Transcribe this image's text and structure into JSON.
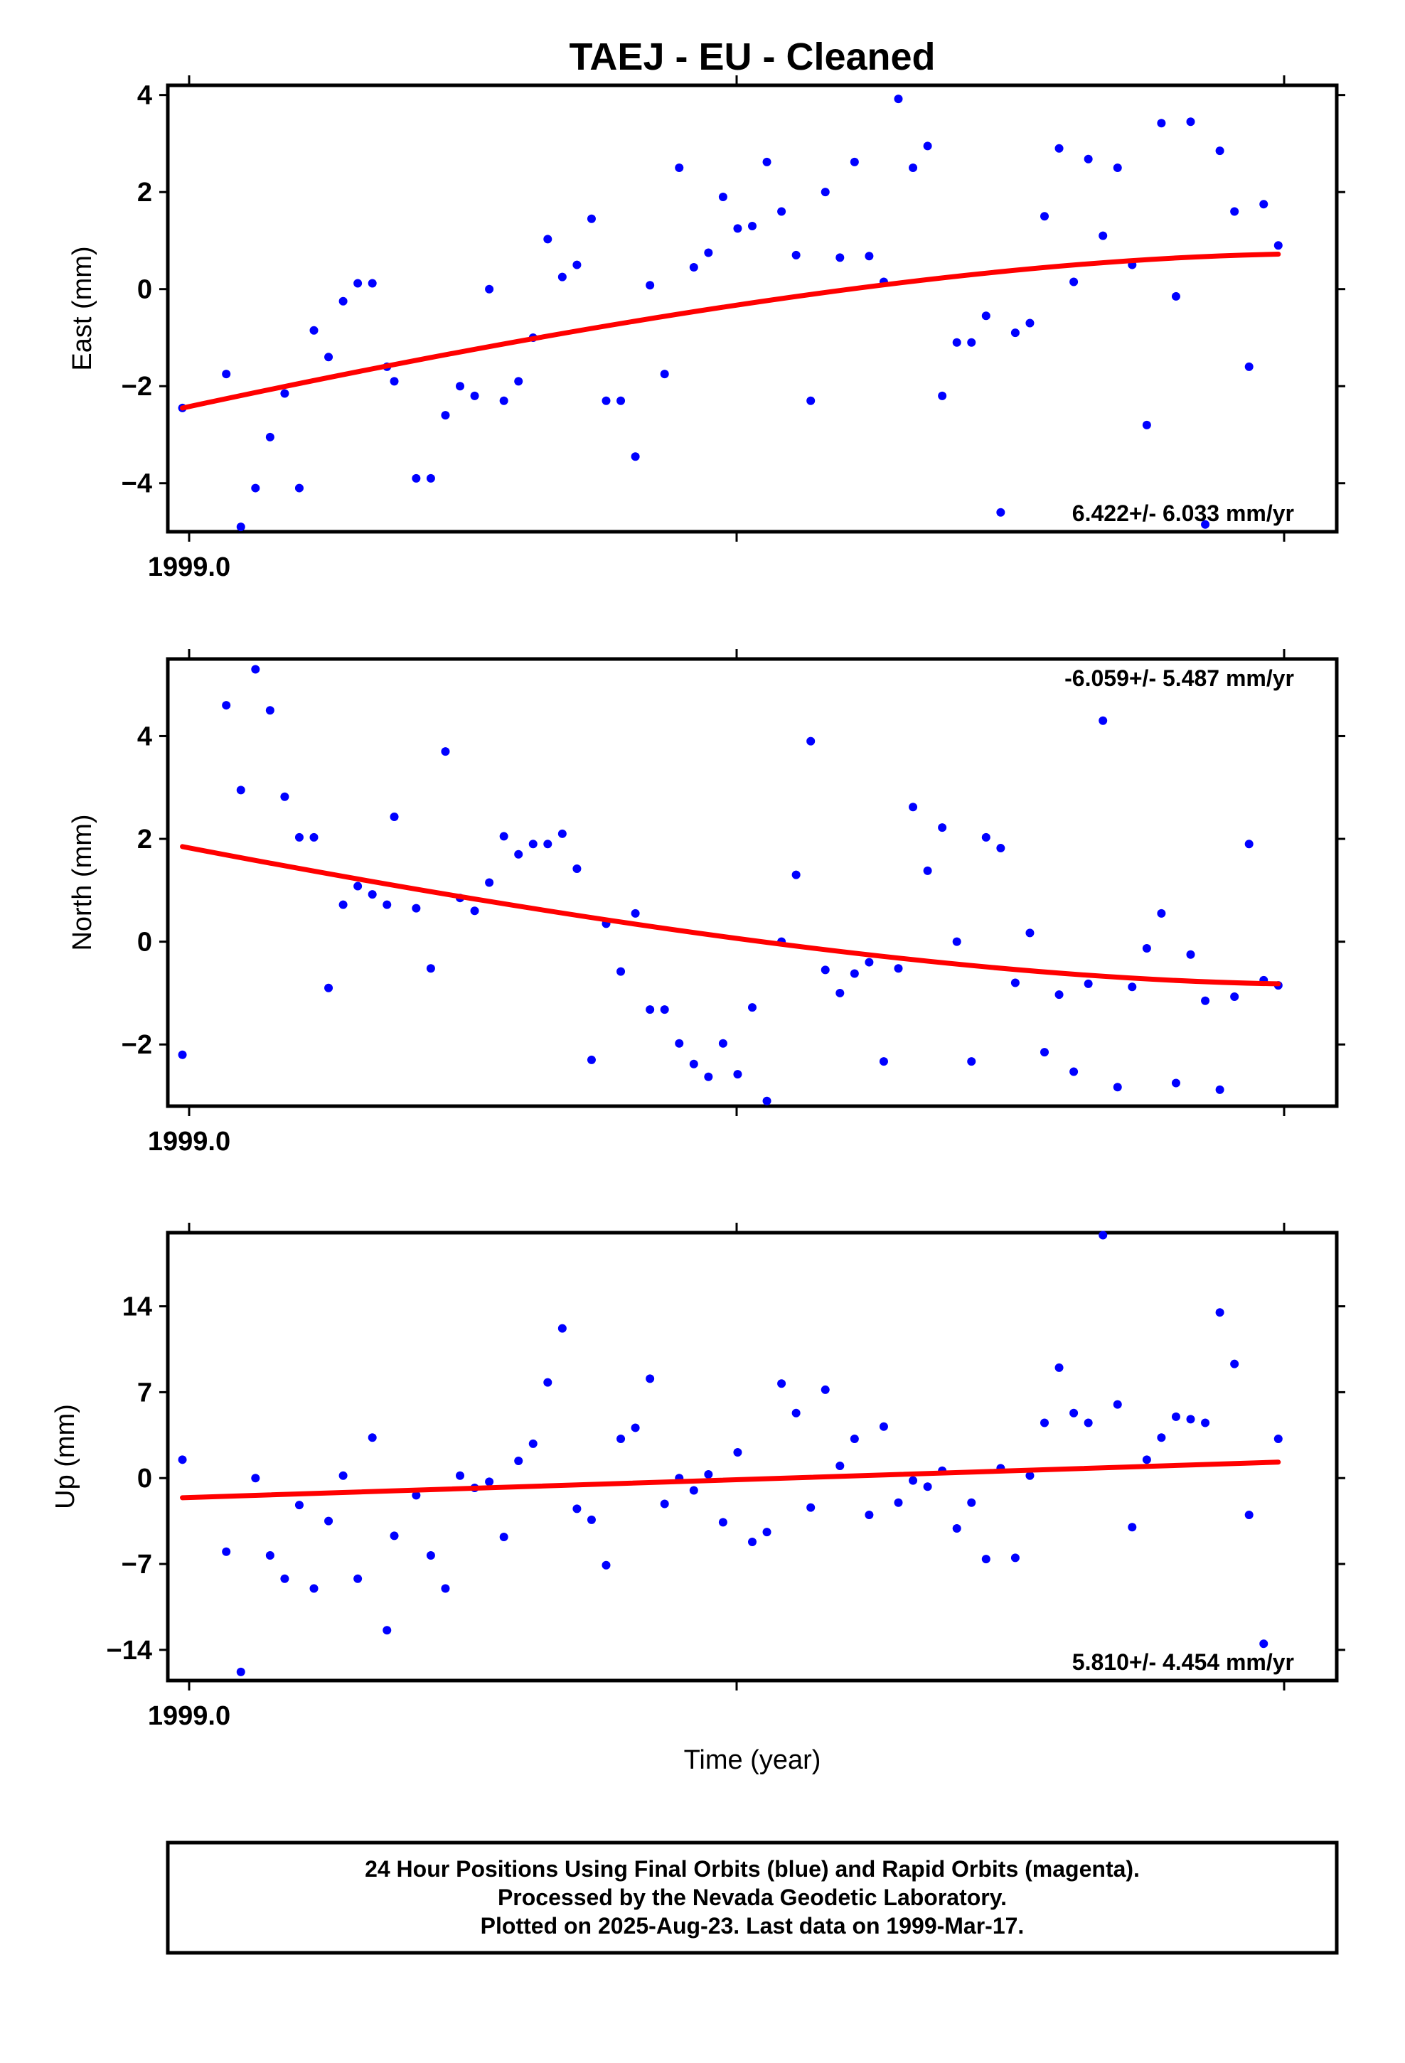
{
  "chart_data": [
    {
      "type": "scatter",
      "title": "TAEJ  - EU - Cleaned",
      "ylabel": "East (mm)",
      "xlabel": "",
      "x_tick_label": "1999.0",
      "yticks": [
        -4,
        -2,
        0,
        2,
        4
      ],
      "ylim": [
        -5.0,
        4.2
      ],
      "rate_label": "6.422+/- 6.033 mm/yr",
      "x": [
        1.0,
        4.0,
        5.0,
        6.0,
        7.0,
        8.0,
        9.0,
        10.0,
        11.0,
        12.0,
        13.0,
        14.0,
        15.0,
        15.5,
        17.0,
        18.0,
        19.0,
        20.0,
        21.0,
        22.0,
        23.0,
        24.0,
        25.0,
        26.0,
        27.0,
        28.0,
        29.0,
        30.0,
        31.0,
        32.0,
        33.0,
        34.0,
        35.0,
        36.0,
        37.0,
        38.0,
        39.0,
        40.0,
        41.0,
        42.0,
        43.0,
        44.0,
        45.0,
        46.0,
        47.0,
        48.0,
        49.0,
        50.0,
        51.0,
        52.0,
        53.0,
        54.0,
        55.0,
        56.0,
        57.0,
        58.0,
        59.0,
        60.0,
        61.0,
        62.0,
        63.0,
        64.0,
        65.0,
        66.0,
        67.0,
        68.0,
        69.0,
        70.0,
        71.0,
        72.0,
        73.0,
        74.0,
        75.0,
        76.0
      ],
      "y": [
        -2.45,
        -1.75,
        -4.9,
        -4.1,
        -3.05,
        -2.15,
        -4.1,
        -0.85,
        -1.4,
        -0.25,
        0.12,
        0.12,
        -1.6,
        -1.9,
        -3.9,
        -3.9,
        -2.6,
        -2.0,
        -2.2,
        0.0,
        -2.3,
        -1.9,
        -1.0,
        1.03,
        0.25,
        0.5,
        1.45,
        -2.3,
        -2.3,
        -3.45,
        0.08,
        -1.75,
        2.5,
        0.45,
        0.75,
        1.9,
        1.25,
        1.3,
        2.62,
        1.6,
        0.7,
        -2.3,
        2.0,
        0.65,
        2.62,
        0.68,
        0.15,
        3.92,
        2.5,
        2.95,
        -2.2,
        -1.1,
        -1.1,
        -0.55,
        -4.6,
        -0.9,
        -0.7,
        1.5,
        2.9,
        0.15,
        2.68,
        1.1,
        2.5,
        0.5,
        -2.8,
        3.42,
        -0.15,
        3.45,
        -4.85,
        2.85,
        1.6,
        -1.6,
        1.75,
        0.9
      ],
      "fit_x": [
        1,
        76
      ],
      "fit_y": [
        -2.45,
        0.72
      ]
    },
    {
      "type": "scatter",
      "title": "",
      "ylabel": "North (mm)",
      "xlabel": "",
      "x_tick_label": "1999.0",
      "yticks": [
        -2,
        0,
        2,
        4
      ],
      "ylim": [
        -3.2,
        5.5
      ],
      "rate_label": "-6.059+/- 5.487 mm/yr",
      "x": [
        1.0,
        4.0,
        5.0,
        6.0,
        7.0,
        8.0,
        9.0,
        10.0,
        11.0,
        12.0,
        13.0,
        14.0,
        15.0,
        15.5,
        17.0,
        18.0,
        19.0,
        20.0,
        21.0,
        22.0,
        23.0,
        24.0,
        25.0,
        26.0,
        27.0,
        28.0,
        29.0,
        30.0,
        31.0,
        32.0,
        33.0,
        34.0,
        35.0,
        36.0,
        37.0,
        38.0,
        39.0,
        40.0,
        41.0,
        42.0,
        43.0,
        44.0,
        45.0,
        46.0,
        47.0,
        48.0,
        49.0,
        50.0,
        51.0,
        52.0,
        53.0,
        54.0,
        55.0,
        56.0,
        57.0,
        58.0,
        59.0,
        60.0,
        61.0,
        62.0,
        63.0,
        64.0,
        65.0,
        66.0,
        67.0,
        68.0,
        69.0,
        70.0,
        71.0,
        72.0,
        73.0,
        74.0,
        75.0,
        76.0
      ],
      "y": [
        -2.2,
        4.6,
        2.95,
        5.3,
        4.5,
        2.82,
        2.03,
        2.03,
        -0.9,
        0.72,
        1.08,
        0.92,
        0.72,
        2.43,
        0.65,
        -0.52,
        3.7,
        0.85,
        0.6,
        1.15,
        2.05,
        1.7,
        1.9,
        1.9,
        2.1,
        1.42,
        -2.3,
        0.35,
        -0.58,
        0.55,
        -1.32,
        -1.32,
        -1.98,
        -2.38,
        -2.63,
        -1.98,
        -2.58,
        -1.28,
        -3.1,
        0.0,
        1.3,
        3.9,
        -0.55,
        -1.0,
        -0.62,
        -0.4,
        -2.33,
        -0.52,
        2.62,
        1.38,
        2.22,
        0.0,
        -2.33,
        2.03,
        1.82,
        -0.8,
        0.17,
        -2.15,
        -1.03,
        -2.53,
        -0.82,
        4.3,
        -2.83,
        -0.88,
        -0.13,
        0.55,
        -2.75,
        -0.25,
        -1.15,
        -2.88,
        -1.07,
        1.9,
        -0.75,
        -0.85
      ],
      "fit_x": [
        1,
        76
      ],
      "fit_y": [
        1.85,
        -0.82
      ]
    },
    {
      "type": "scatter",
      "title": "",
      "ylabel": "Up (mm)",
      "xlabel": "Time (year)",
      "x_tick_label": "1999.0",
      "yticks": [
        -14,
        -7,
        0,
        7,
        14
      ],
      "ylim": [
        -16.5,
        20.0
      ],
      "rate_label": "5.810+/- 4.454 mm/yr",
      "x": [
        1.0,
        4.0,
        5.0,
        6.0,
        7.0,
        8.0,
        9.0,
        10.0,
        11.0,
        12.0,
        13.0,
        14.0,
        15.0,
        15.5,
        17.0,
        18.0,
        19.0,
        20.0,
        21.0,
        22.0,
        23.0,
        24.0,
        25.0,
        26.0,
        27.0,
        28.0,
        29.0,
        30.0,
        31.0,
        32.0,
        33.0,
        34.0,
        35.0,
        36.0,
        37.0,
        38.0,
        39.0,
        40.0,
        41.0,
        42.0,
        43.0,
        44.0,
        45.0,
        46.0,
        47.0,
        48.0,
        49.0,
        50.0,
        51.0,
        52.0,
        53.0,
        54.0,
        55.0,
        56.0,
        57.0,
        58.0,
        59.0,
        60.0,
        61.0,
        62.0,
        63.0,
        64.0,
        65.0,
        66.0,
        67.0,
        68.0,
        69.0,
        70.0,
        71.0,
        72.0,
        73.0,
        74.0,
        75.0,
        76.0
      ],
      "y": [
        1.5,
        -6.0,
        -15.8,
        0.0,
        -6.3,
        -8.2,
        -2.2,
        -9.0,
        -3.5,
        0.2,
        -8.2,
        3.3,
        -12.4,
        -4.7,
        -1.4,
        -6.3,
        -9.0,
        0.2,
        -0.8,
        -0.3,
        -4.8,
        1.4,
        2.8,
        7.8,
        12.2,
        -2.5,
        -3.4,
        -7.1,
        3.2,
        4.1,
        8.1,
        -2.1,
        0.0,
        -1.0,
        0.3,
        -3.6,
        2.1,
        -5.2,
        -4.4,
        7.7,
        5.3,
        -2.4,
        7.2,
        1.0,
        3.2,
        -3.0,
        4.2,
        -2.0,
        -0.2,
        -0.7,
        0.6,
        -4.1,
        -2.0,
        -6.6,
        0.8,
        -6.5,
        0.2,
        4.5,
        9.0,
        5.3,
        4.5,
        19.8,
        6.0,
        -4.0,
        1.5,
        3.3,
        5.0,
        4.8,
        4.5,
        13.5,
        9.3,
        -3.0,
        -13.5,
        3.2
      ],
      "fit_x": [
        1,
        76
      ],
      "fit_y": [
        -1.6,
        1.3
      ]
    }
  ],
  "footer": {
    "line1": "24 Hour Positions Using Final Orbits (blue) and Rapid Orbits (magenta).",
    "line2": "Processed by the Nevada Geodetic Laboratory.",
    "line3": "Plotted on 2025-Aug-23. Last data on 1999-Mar-17."
  },
  "colors": {
    "points": "#0000ff",
    "fit": "#ff0000",
    "frame": "#000000"
  }
}
